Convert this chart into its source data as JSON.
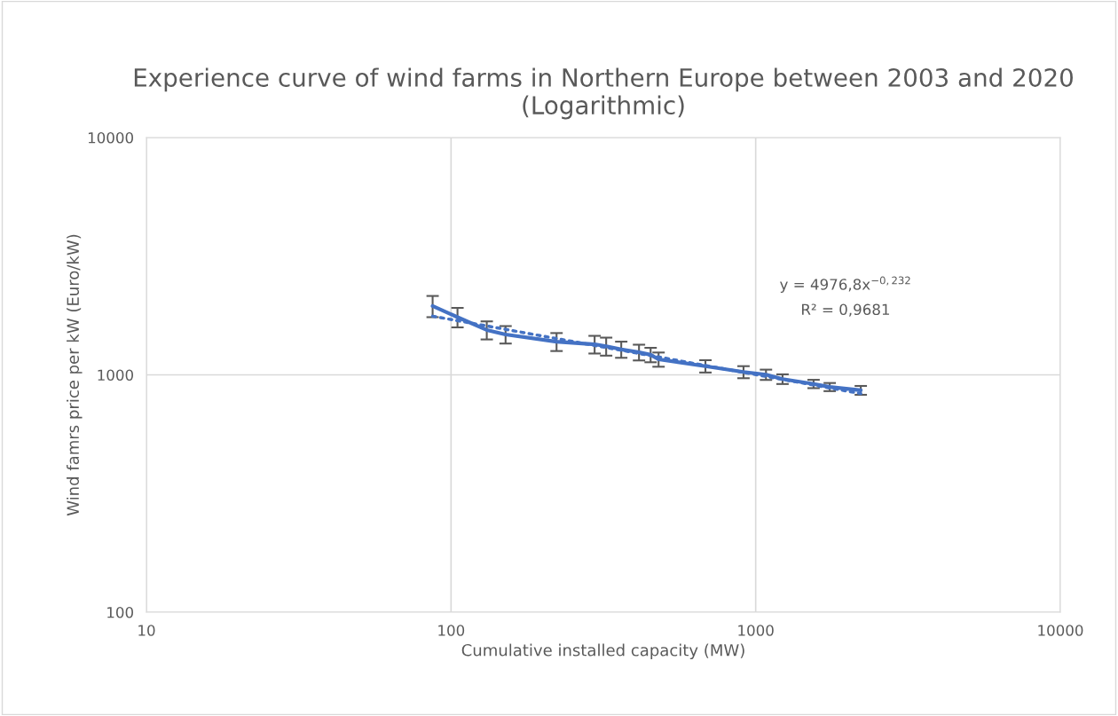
{
  "chart_data": {
    "type": "line",
    "title": "Experience curve of wind farms in Northern Europe between 2003 and 2020 (Logarithmic)",
    "xlabel": "Cumulative installed capacity (MW)",
    "ylabel": "Wind famrs price per kW (Euro/kW)",
    "log": "xy",
    "xlim": [
      10,
      10000
    ],
    "xticks": [
      10,
      100,
      1000,
      10000
    ],
    "ylim": [
      100,
      10000
    ],
    "yticks": [
      100,
      1000,
      10000
    ],
    "grid": true,
    "marker": "none",
    "series": [
      {
        "color": "#4472c4",
        "line_style": "solid",
        "x": [
          87,
          105,
          131,
          151,
          222,
          296,
          323,
          362,
          414,
          452,
          480,
          684,
          912,
          1081,
          1225,
          1549,
          1750,
          2213
        ],
        "values": [
          1950,
          1750,
          1545,
          1480,
          1380,
          1345,
          1320,
          1280,
          1245,
          1215,
          1162,
          1088,
          1028,
          1002,
          960,
          916,
          889,
          861
        ],
        "errors": [
          200,
          165,
          135,
          125,
          120,
          115,
          115,
          100,
          95,
          85,
          80,
          65,
          60,
          50,
          45,
          37,
          35,
          37
        ]
      },
      {
        "color": "#4472c4",
        "line_style": "dotted",
        "x": [
          87,
          2213
        ],
        "values": [
          1767,
          834
        ]
      }
    ],
    "annotations": [
      "y = 4976,8x$^{−0,232}$",
      "R² = 0,9681"
    ]
  }
}
